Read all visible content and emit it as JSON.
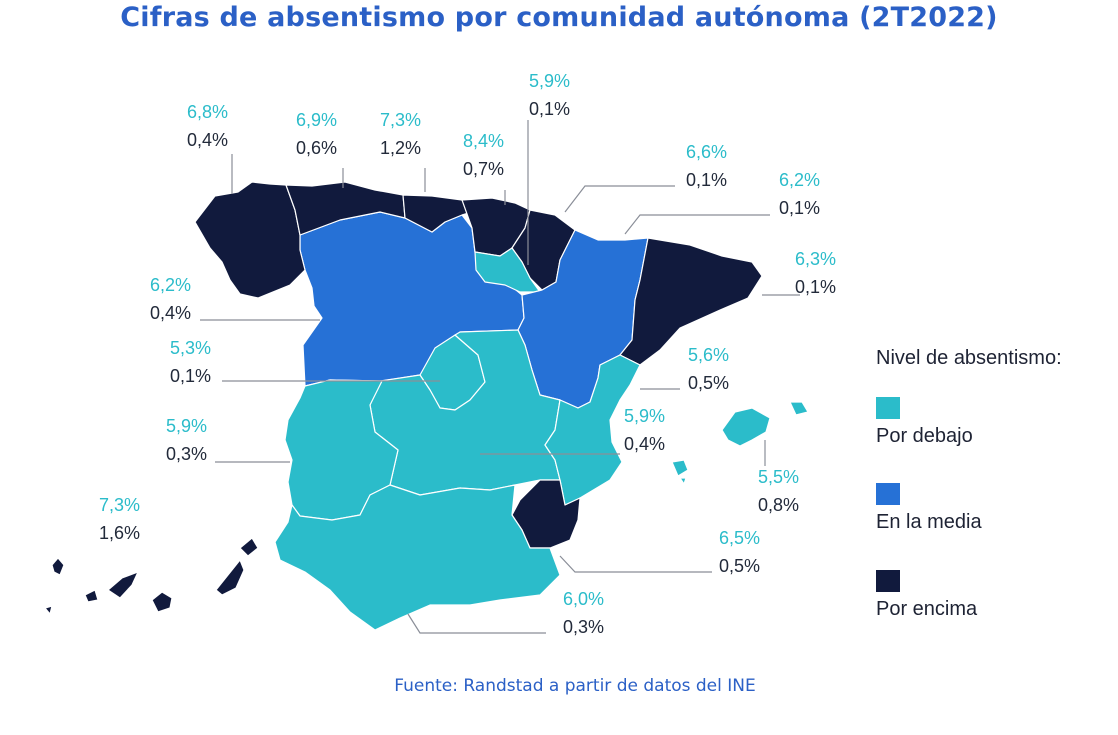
{
  "title": "Cifras de absentismo por comunidad autónoma (2T2022)",
  "source": "Fuente: Randstad a partir de datos del INE",
  "colors": {
    "below": "#2bbcca",
    "average": "#2671d6",
    "above": "#111a3d",
    "pct_text": "#2bbcca",
    "title": "#2b60c6"
  },
  "legend": {
    "title": "Nivel de absentismo:",
    "items": [
      {
        "key": "below",
        "label": "Por debajo"
      },
      {
        "key": "average",
        "label": "En la media"
      },
      {
        "key": "above",
        "label": "Por encima"
      }
    ]
  },
  "regions": [
    {
      "id": "galicia",
      "rate": "6,8%",
      "change": "0,4%",
      "level": "above"
    },
    {
      "id": "asturias",
      "rate": "6,9%",
      "change": "0,6%",
      "level": "above"
    },
    {
      "id": "cantabria",
      "rate": "7,3%",
      "change": "1,2%",
      "level": "above"
    },
    {
      "id": "pais-vasco",
      "rate": "8,4%",
      "change": "0,7%",
      "level": "above"
    },
    {
      "id": "la-rioja",
      "rate": "5,9%",
      "change": "0,1%",
      "level": "below"
    },
    {
      "id": "navarra",
      "rate": "6,6%",
      "change": "0,1%",
      "level": "above"
    },
    {
      "id": "aragon",
      "rate": "6,2%",
      "change": "0,1%",
      "level": "average"
    },
    {
      "id": "cataluna",
      "rate": "6,3%",
      "change": "0,1%",
      "level": "above"
    },
    {
      "id": "castilla-leon",
      "rate": "6,2%",
      "change": "0,4%",
      "level": "average"
    },
    {
      "id": "madrid",
      "rate": "5,3%",
      "change": "0,1%",
      "level": "below"
    },
    {
      "id": "comunidad-valenciana",
      "rate": "5,6%",
      "change": "0,5%",
      "level": "below"
    },
    {
      "id": "castilla-la-mancha",
      "rate": "5,9%",
      "change": "0,4%",
      "level": "below"
    },
    {
      "id": "extremadura",
      "rate": "5,9%",
      "change": "0,3%",
      "level": "below"
    },
    {
      "id": "baleares",
      "rate": "5,5%",
      "change": "0,8%",
      "level": "below"
    },
    {
      "id": "canarias",
      "rate": "7,3%",
      "change": "1,6%",
      "level": "above"
    },
    {
      "id": "murcia",
      "rate": "6,5%",
      "change": "0,5%",
      "level": "above"
    },
    {
      "id": "andalucia",
      "rate": "6,0%",
      "change": "0,3%",
      "level": "below"
    }
  ]
}
